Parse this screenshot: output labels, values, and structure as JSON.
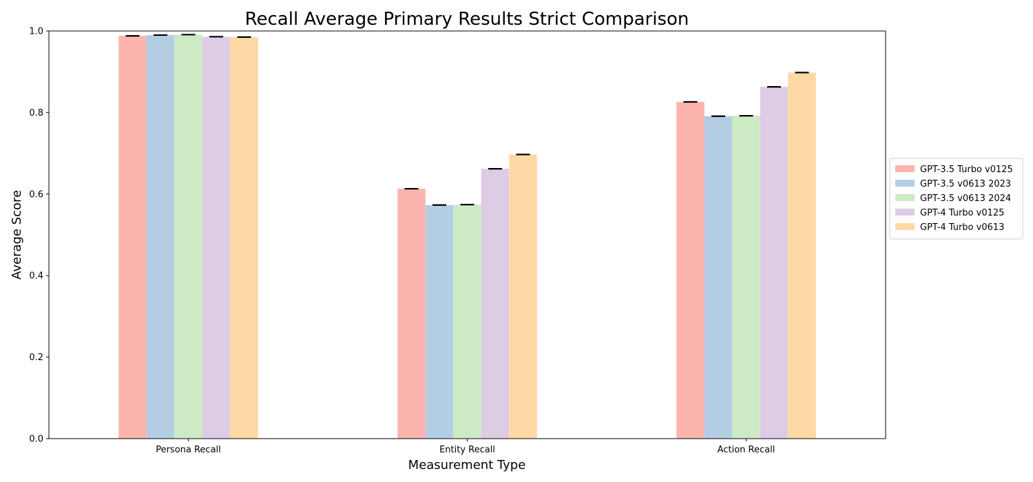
{
  "chart_data": {
    "type": "bar",
    "title": "Recall Average Primary Results Strict Comparison",
    "xlabel": "Measurement Type",
    "ylabel": "Average Score",
    "ylim": [
      0,
      1.0
    ],
    "yticks": [
      "0.0",
      "0.2",
      "0.4",
      "0.6",
      "0.8",
      "1.0"
    ],
    "categories": [
      "Persona Recall",
      "Entity Recall",
      "Action Recall"
    ],
    "error_bars": true,
    "grid": false,
    "legend_position": "center-right",
    "series": [
      {
        "name": "GPT-3.5 Turbo v0125",
        "color": "#fbb4ae",
        "values": [
          0.988,
          0.613,
          0.826
        ]
      },
      {
        "name": "GPT-3.5 v0613 2023",
        "color": "#b3cde3",
        "values": [
          0.99,
          0.573,
          0.791
        ]
      },
      {
        "name": "GPT-3.5 v0613 2024",
        "color": "#ccebc5",
        "values": [
          0.991,
          0.574,
          0.792
        ]
      },
      {
        "name": "GPT-4 Turbo v0125",
        "color": "#decbe4",
        "values": [
          0.986,
          0.662,
          0.863
        ]
      },
      {
        "name": "GPT-4 Turbo v0613",
        "color": "#fed9a6",
        "values": [
          0.985,
          0.697,
          0.898
        ]
      }
    ]
  }
}
